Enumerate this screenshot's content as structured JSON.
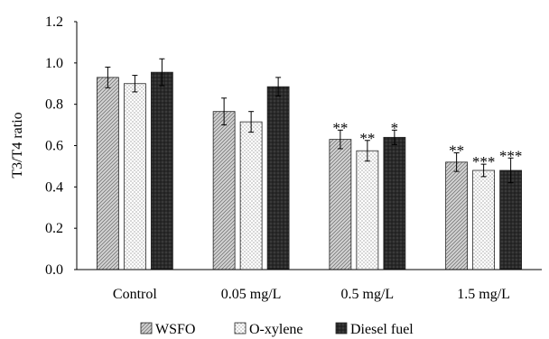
{
  "chart_data": {
    "type": "bar",
    "title": "",
    "xlabel": "",
    "ylabel": "T3/T4 ratio",
    "ylim": [
      0,
      1.2
    ],
    "yticks": [
      "0.0",
      "0.2",
      "0.4",
      "0.6",
      "0.8",
      "1.0",
      "1.2"
    ],
    "categories": [
      "Control",
      "0.05 mg/L",
      "0.5 mg/L",
      "1.5 mg/L"
    ],
    "legend_position": "bottom",
    "grid": false,
    "series": [
      {
        "name": "WSFO",
        "pattern": "diagonal-hatch",
        "color": "#c8c8c8",
        "values": [
          0.93,
          0.765,
          0.63,
          0.52
        ],
        "errors": [
          0.05,
          0.065,
          0.045,
          0.045
        ],
        "significance": [
          "",
          "",
          "**",
          "**"
        ]
      },
      {
        "name": "O-xylene",
        "pattern": "dots",
        "color": "#ffffff",
        "values": [
          0.9,
          0.715,
          0.575,
          0.48
        ],
        "errors": [
          0.04,
          0.05,
          0.05,
          0.03
        ],
        "significance": [
          "",
          "",
          "**",
          "***"
        ]
      },
      {
        "name": "Diesel fuel",
        "pattern": "dark-crosshatch",
        "color": "#3a3a3a",
        "values": [
          0.955,
          0.885,
          0.64,
          0.48
        ],
        "errors": [
          0.065,
          0.045,
          0.035,
          0.06
        ],
        "significance": [
          "",
          "",
          "*",
          "***"
        ]
      }
    ]
  }
}
